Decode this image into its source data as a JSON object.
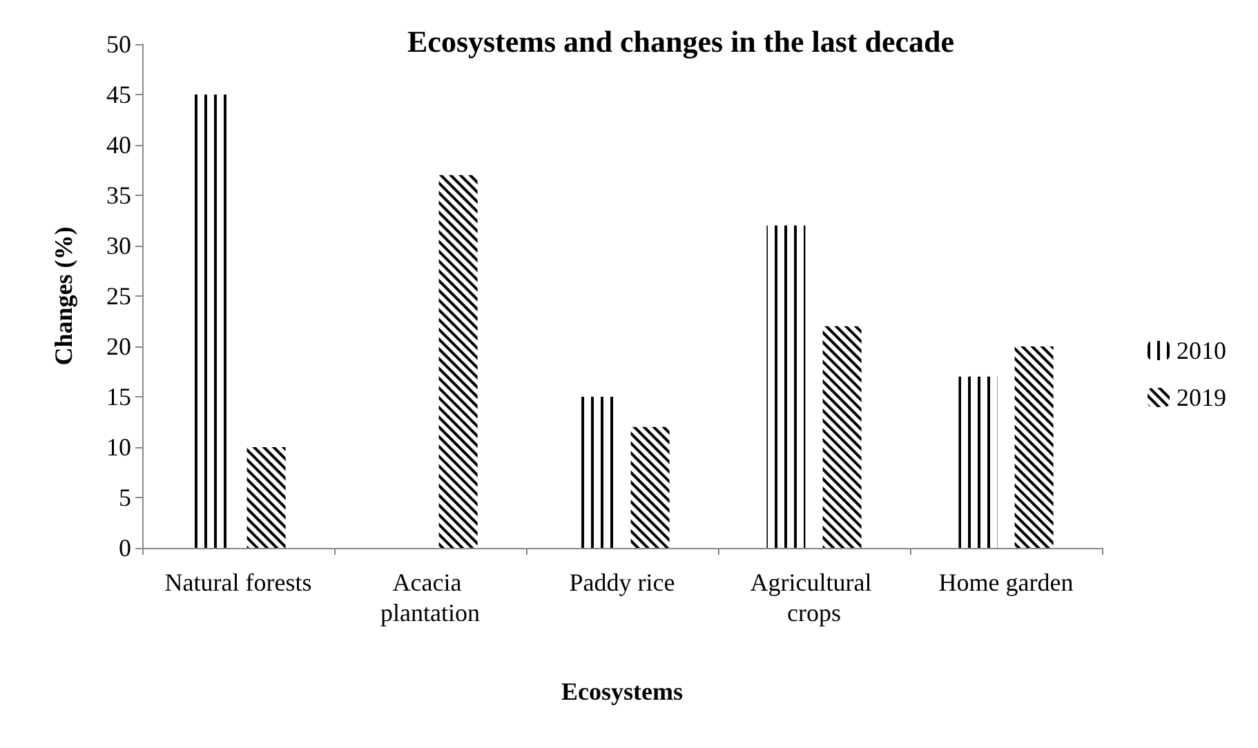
{
  "chart_data": {
    "type": "bar",
    "title": "Ecosystems and changes in the last decade",
    "xlabel": "Ecosystems",
    "ylabel": "Changes (%)",
    "categories": [
      "Natural forests",
      "Acacia plantation",
      "Paddy rice",
      "Agricultural crops",
      "Home garden"
    ],
    "series": [
      {
        "name": "2010",
        "color": "#000000",
        "values": [
          45,
          0,
          15,
          32,
          17
        ]
      },
      {
        "name": "2019",
        "color": "#000000",
        "values": [
          10,
          37,
          12,
          22,
          20
        ]
      }
    ],
    "ylim": [
      0,
      50
    ],
    "yticks": [
      0,
      5,
      10,
      15,
      20,
      25,
      30,
      35,
      40,
      45,
      50
    ],
    "grid": false,
    "legend": "right"
  }
}
